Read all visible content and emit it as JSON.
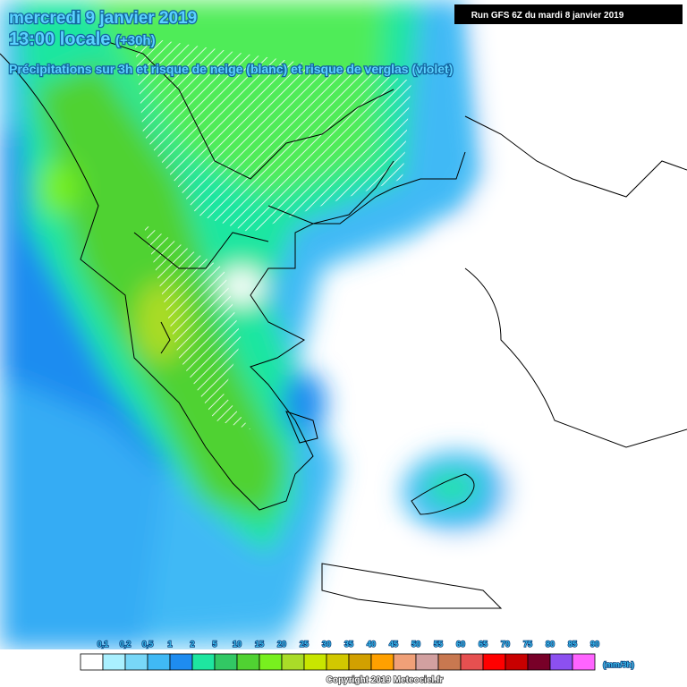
{
  "header": {
    "date": "mercredi 9 janvier 2019",
    "time": "13:00 locale",
    "lead": "(+30h)",
    "subtitle": "Précipitations sur 3h et risque de neige (blanc) et risque de verglas (violet)",
    "run": "Run GFS 6Z du mardi 8 janvier 2019"
  },
  "legend": {
    "labels": [
      "0,1",
      "0,2",
      "0,5",
      "1",
      "2",
      "5",
      "10",
      "15",
      "20",
      "25",
      "30",
      "35",
      "40",
      "45",
      "50",
      "55",
      "60",
      "65",
      "70",
      "75",
      "80",
      "85",
      "90"
    ],
    "colors": [
      "#ffffff",
      "#aaf0ff",
      "#78d7f8",
      "#40b9f5",
      "#1e8cf0",
      "#1ee6a0",
      "#32c864",
      "#50d232",
      "#78f01e",
      "#aadc28",
      "#c8e600",
      "#d2c800",
      "#d2a000",
      "#ffa000",
      "#f0a078",
      "#d2a0a0",
      "#c87850",
      "#e65050",
      "#ff0000",
      "#c80000",
      "#780028",
      "#8c50f0",
      "#ff64ff"
    ],
    "unit": "(mm/3h)"
  },
  "footer": {
    "copyright": "Copyright 2019 Meteociel.fr"
  }
}
